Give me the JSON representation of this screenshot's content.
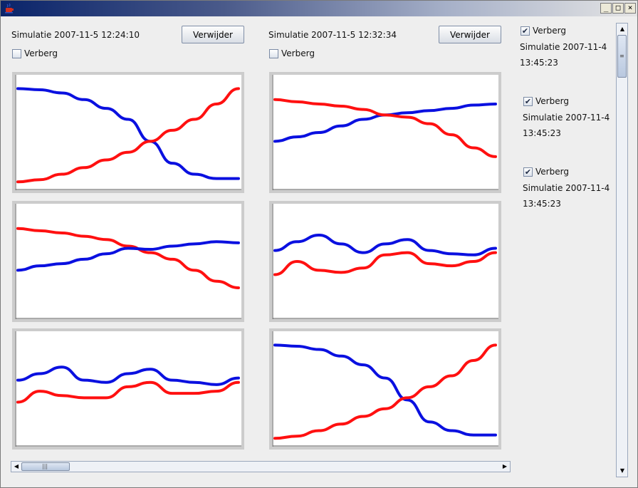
{
  "window": {
    "icon": "java-cup-icon",
    "controls": {
      "minimize": "_",
      "maximize": "□",
      "close": "×"
    }
  },
  "simulations": [
    {
      "title": "Simulatie 2007-11-5 12:24:10",
      "remove_label": "Verwijder",
      "hide_label": "Verberg",
      "hidden": false
    },
    {
      "title": "Simulatie 2007-11-5 12:32:34",
      "remove_label": "Verwijder",
      "hide_label": "Verberg",
      "hidden": false
    }
  ],
  "sidebar": {
    "items": [
      {
        "hide_label": "Verberg",
        "checked": true,
        "title_line1": "Simulatie 2007-11-4",
        "title_line2": "13:45:23"
      },
      {
        "hide_label": "Verberg",
        "checked": true,
        "title_line1": "Simulatie 2007-11-4",
        "title_line2": "13:45:23"
      },
      {
        "hide_label": "Verberg",
        "checked": true,
        "title_line1": "Simulatie 2007-11-4",
        "title_line2": "13:45:23"
      }
    ]
  },
  "series_colors": {
    "red": "#ff1010",
    "blue": "#0a10e0"
  },
  "chart_data": [
    {
      "type": "line",
      "title": "",
      "xlabel": "",
      "ylabel": "",
      "x": [
        0,
        1,
        2,
        3,
        4,
        5,
        6,
        7,
        8,
        9,
        10
      ],
      "series": [
        {
          "color": "#0a10e0",
          "values": [
            0.9,
            0.89,
            0.86,
            0.8,
            0.72,
            0.62,
            0.42,
            0.22,
            0.12,
            0.08,
            0.08
          ]
        },
        {
          "color": "#ff1010",
          "values": [
            0.05,
            0.07,
            0.12,
            0.18,
            0.25,
            0.32,
            0.42,
            0.52,
            0.62,
            0.76,
            0.9
          ]
        }
      ]
    },
    {
      "type": "line",
      "title": "",
      "xlabel": "",
      "ylabel": "",
      "x": [
        0,
        1,
        2,
        3,
        4,
        5,
        6,
        7,
        8,
        9,
        10
      ],
      "series": [
        {
          "color": "#0a10e0",
          "values": [
            0.42,
            0.46,
            0.5,
            0.56,
            0.62,
            0.66,
            0.68,
            0.7,
            0.72,
            0.75,
            0.76
          ]
        },
        {
          "color": "#ff1010",
          "values": [
            0.8,
            0.78,
            0.76,
            0.74,
            0.71,
            0.66,
            0.64,
            0.58,
            0.48,
            0.36,
            0.28
          ]
        }
      ]
    },
    {
      "type": "line",
      "title": "",
      "xlabel": "",
      "ylabel": "",
      "x": [
        0,
        1,
        2,
        3,
        4,
        5,
        6,
        7,
        8,
        9,
        10
      ],
      "series": [
        {
          "color": "#ff1010",
          "values": [
            0.8,
            0.78,
            0.76,
            0.73,
            0.7,
            0.64,
            0.58,
            0.52,
            0.42,
            0.32,
            0.26
          ]
        },
        {
          "color": "#0a10e0",
          "values": [
            0.42,
            0.46,
            0.48,
            0.52,
            0.57,
            0.62,
            0.61,
            0.64,
            0.66,
            0.68,
            0.67
          ]
        }
      ]
    },
    {
      "type": "line",
      "title": "",
      "xlabel": "",
      "ylabel": "",
      "x": [
        0,
        1,
        2,
        3,
        4,
        5,
        6,
        7,
        8,
        9,
        10
      ],
      "series": [
        {
          "color": "#0a10e0",
          "values": [
            0.6,
            0.68,
            0.74,
            0.66,
            0.58,
            0.66,
            0.7,
            0.6,
            0.57,
            0.56,
            0.62
          ]
        },
        {
          "color": "#ff1010",
          "values": [
            0.38,
            0.5,
            0.42,
            0.4,
            0.44,
            0.56,
            0.58,
            0.48,
            0.46,
            0.5,
            0.58
          ]
        }
      ]
    },
    {
      "type": "line",
      "title": "",
      "xlabel": "",
      "ylabel": "",
      "x": [
        0,
        1,
        2,
        3,
        4,
        5,
        6,
        7,
        8,
        9,
        10
      ],
      "series": [
        {
          "color": "#0a10e0",
          "values": [
            0.58,
            0.64,
            0.7,
            0.58,
            0.56,
            0.64,
            0.68,
            0.58,
            0.56,
            0.54,
            0.6
          ]
        },
        {
          "color": "#ff1010",
          "values": [
            0.38,
            0.48,
            0.44,
            0.42,
            0.42,
            0.52,
            0.56,
            0.46,
            0.46,
            0.48,
            0.56
          ]
        }
      ]
    },
    {
      "type": "line",
      "title": "",
      "xlabel": "",
      "ylabel": "",
      "x": [
        0,
        1,
        2,
        3,
        4,
        5,
        6,
        7,
        8,
        9,
        10
      ],
      "series": [
        {
          "color": "#0a10e0",
          "values": [
            0.9,
            0.89,
            0.86,
            0.8,
            0.72,
            0.6,
            0.4,
            0.2,
            0.12,
            0.08,
            0.08
          ]
        },
        {
          "color": "#ff1010",
          "values": [
            0.05,
            0.07,
            0.12,
            0.18,
            0.25,
            0.32,
            0.42,
            0.52,
            0.62,
            0.76,
            0.9
          ]
        }
      ]
    }
  ],
  "hscroll": {
    "left_arrow": "◀",
    "right_arrow": "▶",
    "grip": "|||",
    "position": 0.0
  },
  "vscroll": {
    "up_arrow": "▲",
    "down_arrow": "▼",
    "grip": "≡",
    "position": 0.0
  }
}
